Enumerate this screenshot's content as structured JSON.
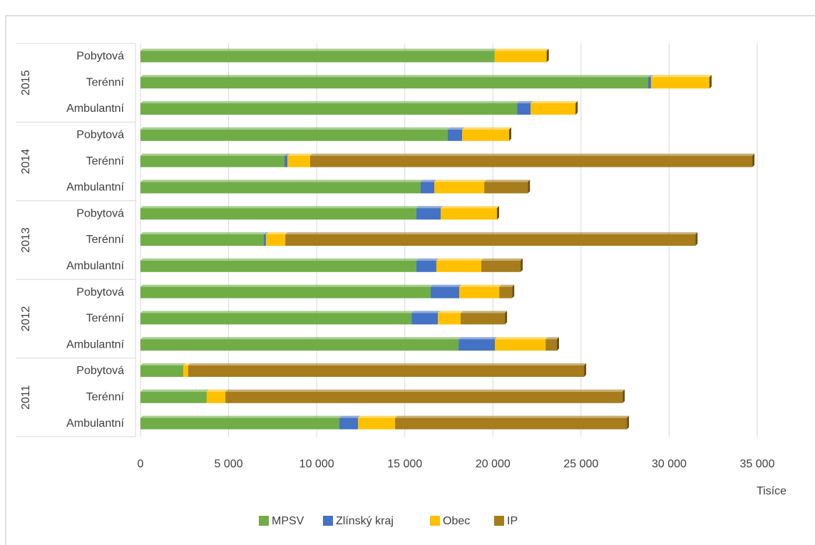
{
  "chart_data": {
    "type": "stacked-bar-horizontal",
    "xlabel": "Tisíce",
    "category_groups": [
      {
        "name": "2011",
        "categories": [
          "Ambulantní",
          "Terénní",
          "Pobytová"
        ]
      },
      {
        "name": "2012",
        "categories": [
          "Ambulantní",
          "Terénní",
          "Pobytová"
        ]
      },
      {
        "name": "2013",
        "categories": [
          "Ambulantní",
          "Terénní",
          "Pobytová"
        ]
      },
      {
        "name": "2014",
        "categories": [
          "Ambulantní",
          "Terénní",
          "Pobytová"
        ]
      },
      {
        "name": "2015",
        "categories": [
          "Ambulantní",
          "Terénní",
          "Pobytová"
        ]
      }
    ],
    "series": [
      {
        "name": "MPSV",
        "color": "#70ad47",
        "values": [
          11290,
          3760,
          2430,
          18050,
          15380,
          16470,
          15660,
          7000,
          15660,
          15900,
          8170,
          17440,
          21370,
          28810,
          20100
        ]
      },
      {
        "name": "Zlínský kraj",
        "color": "#4472c4",
        "values": [
          1050,
          0,
          0,
          2060,
          1500,
          1620,
          1130,
          120,
          1380,
          770,
          170,
          810,
          770,
          160,
          0
        ]
      },
      {
        "name": "Obec",
        "color": "#ffc000",
        "values": [
          2110,
          1060,
          280,
          2880,
          1290,
          2270,
          2550,
          1100,
          3190,
          2840,
          1290,
          2670,
          2550,
          3320,
          2950
        ]
      },
      {
        "name": "IP",
        "color": "#a67c1c",
        "values": [
          13150,
          22540,
          22460,
          640,
          2510,
          730,
          2230,
          23270,
          0,
          2470,
          25090,
          0,
          0,
          0,
          0
        ]
      }
    ],
    "xlim": [
      0,
      35000
    ],
    "xticks": [
      0,
      {
        "value": 5000,
        "label": "5 000"
      },
      {
        "value": 10000,
        "label": "10 000"
      },
      {
        "value": 15000,
        "label": "15 000"
      },
      {
        "value": 20000,
        "label": "20 000"
      },
      {
        "value": 25000,
        "label": "25 000"
      },
      {
        "value": 30000,
        "label": "30 000"
      },
      {
        "value": 35000,
        "label": "35 000"
      }
    ],
    "grid": true,
    "legend": "bottom"
  }
}
